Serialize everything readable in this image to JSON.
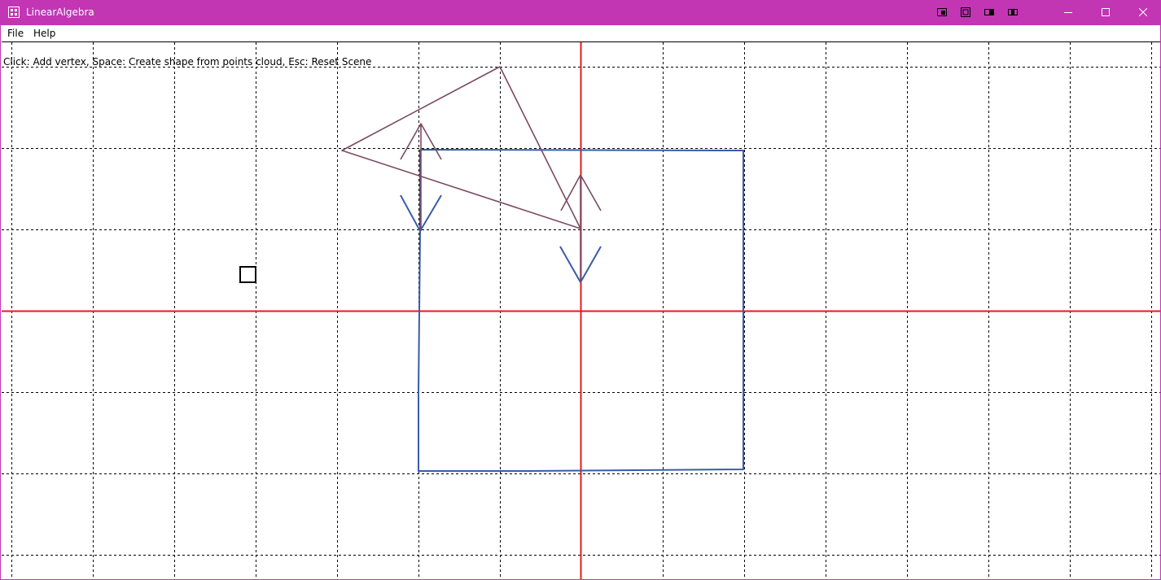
{
  "window": {
    "title": "LinearAlgebra",
    "accent_color": "#c236b4",
    "titlebar_icons": [
      "app-grid-icon",
      "dock-icon",
      "frame-icon",
      "panel-left-icon",
      "panel-split-icon"
    ],
    "controls": {
      "minimize": "minimize-icon",
      "maximize": "maximize-icon",
      "close": "close-icon"
    }
  },
  "menu": {
    "items": [
      {
        "label": "File"
      },
      {
        "label": "Help"
      }
    ]
  },
  "scene": {
    "hint": "Click: Add vertex, Space: Create shape from points cloud, Esc: Reset Scene",
    "axis_color": "#e8191c",
    "grid_color": "#000000",
    "triangle_color": "#7a4a63",
    "square_color": "#3a5ba8",
    "cursor_marker": "square-vertex-marker"
  }
}
